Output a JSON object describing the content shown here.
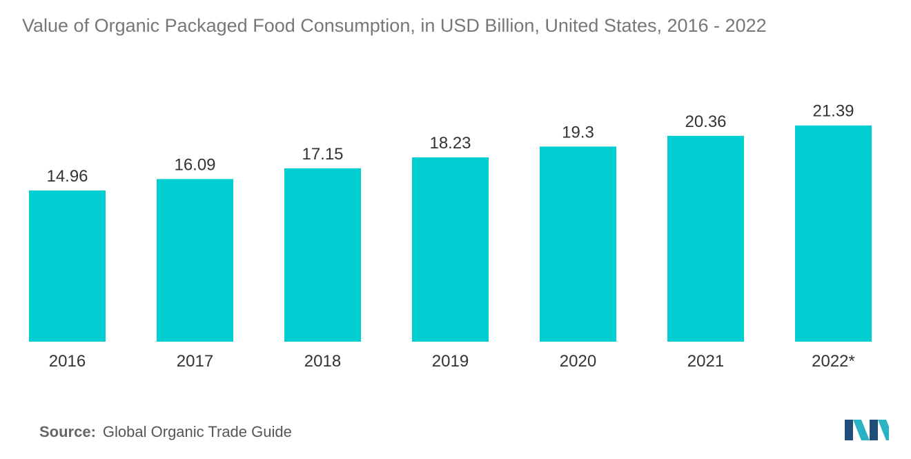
{
  "title": "Value of Organic Packaged Food Consumption, in USD Billion, United States, 2016 - 2022",
  "source": {
    "label": "Source:",
    "text": "Global Organic Trade Guide"
  },
  "colors": {
    "bar": "#00CED1",
    "logo_dark": "#1F4E79",
    "logo_light": "#2BB3C4"
  },
  "chart_data": {
    "type": "bar",
    "categories": [
      "2016",
      "2017",
      "2018",
      "2019",
      "2020",
      "2021",
      "2022*"
    ],
    "values": [
      14.96,
      16.09,
      17.15,
      18.23,
      19.3,
      20.36,
      21.39
    ],
    "value_labels": [
      "14.96",
      "16.09",
      "17.15",
      "18.23",
      "19.3",
      "20.36",
      "21.39"
    ],
    "title": "Value of Organic Packaged Food Consumption, in USD Billion, United States, 2016 - 2022",
    "xlabel": "",
    "ylabel": "",
    "ylim": [
      0,
      33.8
    ],
    "grid": false,
    "legend": "none"
  }
}
